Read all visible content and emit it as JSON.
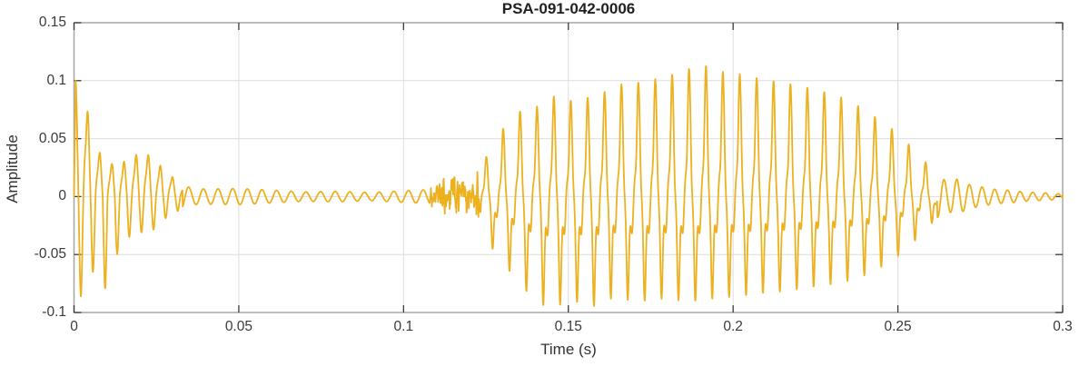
{
  "chart_data": {
    "type": "line",
    "title": "PSA-091-042-0006",
    "xlabel": "Time (s)",
    "ylabel": "Amplitude",
    "xlim": [
      0,
      0.3
    ],
    "ylim": [
      -0.1,
      0.15
    ],
    "xticks": [
      0,
      0.05,
      0.1,
      0.15,
      0.2,
      0.25,
      0.3
    ],
    "xtick_labels": [
      "0",
      "0.05",
      "0.1",
      "0.15",
      "0.2",
      "0.25",
      "0.3"
    ],
    "yticks": [
      -0.1,
      -0.05,
      0,
      0.05,
      0.1,
      0.15
    ],
    "ytick_labels": [
      "-0.1",
      "-0.05",
      "0",
      "0.05",
      "0.1",
      "0.15"
    ],
    "grid": true,
    "legend": "none",
    "colors": {
      "line": "#EDB120",
      "axis_box": "#A6A6A6",
      "grid": "#DEDEDE",
      "tick": "#3B3B3B",
      "text": "#333333",
      "title_text": "#212121",
      "background": "#FFFFFF"
    },
    "waveform": {
      "description": "speech-like audio signal",
      "dt": 0.0001,
      "segments": [
        {
          "name": "initial-burst",
          "t0": 0.0005,
          "t1": 0.033,
          "f": 272,
          "shape": "pulses",
          "components": [
            [
              1,
              0,
              1.6
            ],
            [
              -0.85,
              2.7,
              1.8
            ],
            [
              0.25,
              4.6,
              2.5
            ]
          ],
          "upper": [
            [
              0.0005,
              0.1
            ],
            [
              0.003,
              0.088
            ],
            [
              0.006,
              0.05
            ],
            [
              0.009,
              0.03
            ],
            [
              0.012,
              0.028
            ],
            [
              0.0164,
              0.031
            ],
            [
              0.0208,
              0.04
            ],
            [
              0.025,
              0.03
            ],
            [
              0.0294,
              0.018
            ],
            [
              0.033,
              0.01
            ]
          ],
          "lower": [
            [
              0.0012,
              -0.09
            ],
            [
              0.004,
              -0.078
            ],
            [
              0.0065,
              -0.06
            ],
            [
              0.0095,
              -0.08
            ],
            [
              0.013,
              -0.05
            ],
            [
              0.018,
              -0.03
            ],
            [
              0.023,
              -0.032
            ],
            [
              0.027,
              -0.02
            ],
            [
              0.033,
              -0.01
            ]
          ]
        },
        {
          "name": "low-ripple",
          "t0": 0.033,
          "t1": 0.108,
          "f": 225,
          "shape": "sine",
          "upper": [
            [
              0.033,
              0.01
            ],
            [
              0.036,
              0.007
            ],
            [
              0.04,
              0.0065
            ],
            [
              0.05,
              0.007
            ],
            [
              0.06,
              0.0055
            ],
            [
              0.07,
              0.004
            ],
            [
              0.08,
              0.0045
            ],
            [
              0.09,
              0.0035
            ],
            [
              0.1,
              0.005
            ],
            [
              0.108,
              0.006
            ]
          ]
        },
        {
          "name": "fricative-noise",
          "t0": 0.108,
          "t1": 0.1235,
          "f": 0,
          "shape": "noise",
          "upper": [
            [
              0.108,
              0.005
            ],
            [
              0.111,
              0.009
            ],
            [
              0.114,
              0.014
            ],
            [
              0.118,
              0.012
            ],
            [
              0.121,
              0.013
            ],
            [
              0.1235,
              0.02
            ]
          ]
        },
        {
          "name": "voiced-vowel",
          "t0": 0.1235,
          "t1": 0.262,
          "f": 195,
          "shape": "pulses",
          "components": [
            [
              1,
              0,
              6
            ],
            [
              0.55,
              0.55,
              8
            ],
            [
              -0.95,
              2.5,
              5
            ],
            [
              -0.35,
              4.1,
              4
            ],
            [
              0.22,
              5.1,
              5
            ]
          ],
          "upper": [
            [
              0.1235,
              0.025
            ],
            [
              0.127,
              0.045
            ],
            [
              0.131,
              0.062
            ],
            [
              0.135,
              0.074
            ],
            [
              0.139,
              0.071
            ],
            [
              0.143,
              0.089
            ],
            [
              0.148,
              0.084
            ],
            [
              0.153,
              0.082
            ],
            [
              0.158,
              0.088
            ],
            [
              0.163,
              0.092
            ],
            [
              0.168,
              0.1
            ],
            [
              0.173,
              0.098
            ],
            [
              0.178,
              0.103
            ],
            [
              0.183,
              0.106
            ],
            [
              0.188,
              0.112
            ],
            [
              0.192,
              0.113
            ],
            [
              0.196,
              0.108
            ],
            [
              0.2,
              0.107
            ],
            [
              0.205,
              0.104
            ],
            [
              0.21,
              0.101
            ],
            [
              0.215,
              0.098
            ],
            [
              0.22,
              0.096
            ],
            [
              0.225,
              0.092
            ],
            [
              0.23,
              0.089
            ],
            [
              0.235,
              0.083
            ],
            [
              0.24,
              0.075
            ],
            [
              0.244,
              0.067
            ],
            [
              0.248,
              0.059
            ],
            [
              0.252,
              0.049
            ],
            [
              0.256,
              0.037
            ],
            [
              0.259,
              0.028
            ],
            [
              0.262,
              0.02
            ]
          ],
          "lower": [
            [
              0.1235,
              -0.028
            ],
            [
              0.128,
              -0.05
            ],
            [
              0.132,
              -0.064
            ],
            [
              0.136,
              -0.078
            ],
            [
              0.14,
              -0.09
            ],
            [
              0.144,
              -0.096
            ],
            [
              0.148,
              -0.093
            ],
            [
              0.152,
              -0.091
            ],
            [
              0.157,
              -0.096
            ],
            [
              0.162,
              -0.088
            ],
            [
              0.167,
              -0.089
            ],
            [
              0.172,
              -0.091
            ],
            [
              0.177,
              -0.088
            ],
            [
              0.182,
              -0.089
            ],
            [
              0.187,
              -0.091
            ],
            [
              0.192,
              -0.089
            ],
            [
              0.197,
              -0.087
            ],
            [
              0.202,
              -0.086
            ],
            [
              0.207,
              -0.084
            ],
            [
              0.212,
              -0.083
            ],
            [
              0.217,
              -0.081
            ],
            [
              0.222,
              -0.079
            ],
            [
              0.227,
              -0.077
            ],
            [
              0.232,
              -0.075
            ],
            [
              0.237,
              -0.071
            ],
            [
              0.241,
              -0.067
            ],
            [
              0.245,
              -0.061
            ],
            [
              0.249,
              -0.054
            ],
            [
              0.253,
              -0.044
            ],
            [
              0.257,
              -0.033
            ],
            [
              0.262,
              -0.018
            ]
          ]
        },
        {
          "name": "release-tail",
          "t0": 0.262,
          "t1": 0.3,
          "f": 260,
          "shape": "sine",
          "upper": [
            [
              0.262,
              0.018
            ],
            [
              0.265,
              0.013
            ],
            [
              0.268,
              0.015
            ],
            [
              0.272,
              0.01
            ],
            [
              0.276,
              0.008
            ],
            [
              0.28,
              0.006
            ],
            [
              0.284,
              0.0055
            ],
            [
              0.288,
              0.004
            ],
            [
              0.292,
              0.0035
            ],
            [
              0.296,
              0.003
            ],
            [
              0.3,
              0.002
            ]
          ]
        }
      ]
    }
  }
}
